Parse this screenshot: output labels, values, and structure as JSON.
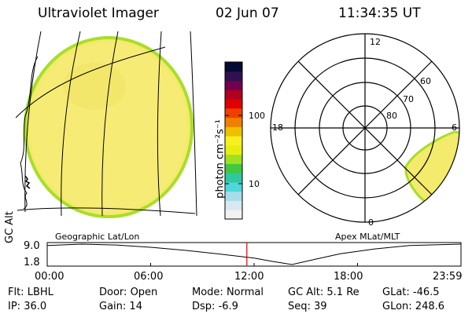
{
  "header": {
    "title": "Ultraviolet Imager",
    "date": "02 Jun 07",
    "time": "11:34:35 UT"
  },
  "colorbar": {
    "unit_label": "photon cm⁻²s⁻¹",
    "ticks": [
      "100",
      "10"
    ],
    "colors": [
      "#f2f2f2",
      "#d8e8f0",
      "#a8dcea",
      "#50d8d8",
      "#30c8a0",
      "#40c840",
      "#a0e020",
      "#e6ee10",
      "#f6f020",
      "#f0c000",
      "#f08000",
      "#f04000",
      "#e00000",
      "#b00020",
      "#700050",
      "#301050",
      "#050a30"
    ]
  },
  "geographic_panel": {
    "label": "Geographic Lat/Lon"
  },
  "apex_panel": {
    "label": "Apex MLat/MLT",
    "mlt_labels": [
      "12",
      "18",
      "6",
      "0"
    ],
    "mlat_labels": [
      "60",
      "70",
      "80"
    ]
  },
  "orbit_strip": {
    "ylabel": "GC Alt",
    "y_ticks": [
      "9.0",
      "1.8"
    ],
    "x_ticks": [
      "00:00",
      "06:00",
      "12:00",
      "18:00",
      "23:59"
    ],
    "current_time_hours": 11.58,
    "altitude_series": {
      "x_hours": [
        0,
        2,
        4,
        6,
        8,
        10,
        12,
        13,
        14.2,
        15.5,
        17,
        19,
        21,
        23.98
      ],
      "y_re": [
        8.5,
        9.0,
        8.7,
        7.9,
        6.8,
        5.5,
        4.1,
        3.0,
        1.8,
        3.6,
        5.6,
        7.3,
        8.5,
        9.0
      ]
    }
  },
  "footer": {
    "rows": [
      [
        {
          "k": "Flt:",
          "v": "LBHL"
        },
        {
          "k": "Door:",
          "v": "Open"
        },
        {
          "k": "Mode:",
          "v": "Normal"
        },
        {
          "k": "GC Alt:",
          "v": "5.1 Re"
        },
        {
          "k": "GLat:",
          "v": "-46.5"
        }
      ],
      [
        {
          "k": "IP:",
          "v": "36.0"
        },
        {
          "k": "Gain:",
          "v": "14"
        },
        {
          "k": "Dsp:",
          "v": "-6.9"
        },
        {
          "k": "Seq:",
          "v": "39"
        },
        {
          "k": "GLon:",
          "v": "248.6"
        }
      ]
    ]
  },
  "colors": {
    "aurora_fill": "#f4ea6c",
    "aurora_edge": "#a8de2a",
    "marker_line": "#e00000"
  }
}
